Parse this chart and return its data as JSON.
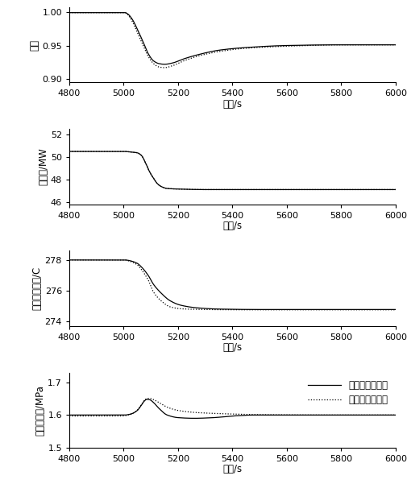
{
  "xlim": [
    4800,
    6000
  ],
  "xticks": [
    4800,
    5000,
    5200,
    5400,
    5600,
    5800,
    6000
  ],
  "xlabel": "时间/s",
  "plot1": {
    "ylabel": "效率",
    "ylim": [
      0.895,
      1.007
    ],
    "yticks": [
      0.9,
      0.95,
      1.0
    ],
    "solid_points": [
      [
        4800,
        0.999
      ],
      [
        4990,
        0.999
      ],
      [
        5005,
        0.999
      ],
      [
        5015,
        0.997
      ],
      [
        5030,
        0.99
      ],
      [
        5055,
        0.97
      ],
      [
        5075,
        0.952
      ],
      [
        5090,
        0.938
      ],
      [
        5110,
        0.927
      ],
      [
        5130,
        0.923
      ],
      [
        5150,
        0.922
      ],
      [
        5180,
        0.924
      ],
      [
        5220,
        0.93
      ],
      [
        5280,
        0.937
      ],
      [
        5350,
        0.943
      ],
      [
        5450,
        0.947
      ],
      [
        5600,
        0.95
      ],
      [
        5800,
        0.951
      ],
      [
        6000,
        0.951
      ]
    ],
    "dotted_points": [
      [
        4800,
        0.999
      ],
      [
        4990,
        0.999
      ],
      [
        5005,
        0.999
      ],
      [
        5015,
        0.996
      ],
      [
        5030,
        0.987
      ],
      [
        5055,
        0.965
      ],
      [
        5075,
        0.947
      ],
      [
        5090,
        0.934
      ],
      [
        5110,
        0.923
      ],
      [
        5130,
        0.918
      ],
      [
        5150,
        0.917
      ],
      [
        5180,
        0.92
      ],
      [
        5220,
        0.927
      ],
      [
        5280,
        0.935
      ],
      [
        5350,
        0.941
      ],
      [
        5450,
        0.946
      ],
      [
        5600,
        0.949
      ],
      [
        5800,
        0.951
      ],
      [
        6000,
        0.951
      ]
    ]
  },
  "plot2": {
    "ylabel": "核功率/MW",
    "ylim": [
      45.8,
      52.5
    ],
    "yticks": [
      46,
      48,
      50,
      52
    ],
    "solid_points": [
      [
        4800,
        50.5
      ],
      [
        4990,
        50.5
      ],
      [
        5005,
        50.5
      ],
      [
        5015,
        50.48
      ],
      [
        5030,
        50.45
      ],
      [
        5050,
        50.38
      ],
      [
        5065,
        50.15
      ],
      [
        5080,
        49.5
      ],
      [
        5095,
        48.7
      ],
      [
        5110,
        48.1
      ],
      [
        5125,
        47.6
      ],
      [
        5140,
        47.35
      ],
      [
        5160,
        47.2
      ],
      [
        5200,
        47.15
      ],
      [
        5300,
        47.1
      ],
      [
        5500,
        47.1
      ],
      [
        6000,
        47.1
      ]
    ],
    "dotted_points": [
      [
        4800,
        50.5
      ],
      [
        4990,
        50.5
      ],
      [
        5005,
        50.5
      ],
      [
        5015,
        50.48
      ],
      [
        5030,
        50.45
      ],
      [
        5050,
        50.38
      ],
      [
        5065,
        50.15
      ],
      [
        5080,
        49.5
      ],
      [
        5095,
        48.7
      ],
      [
        5110,
        48.1
      ],
      [
        5125,
        47.6
      ],
      [
        5140,
        47.35
      ],
      [
        5160,
        47.2
      ],
      [
        5200,
        47.15
      ],
      [
        5300,
        47.1
      ],
      [
        5500,
        47.1
      ],
      [
        6000,
        47.1
      ]
    ]
  },
  "plot3": {
    "ylabel": "堆芯出口温度/C",
    "ylim": [
      273.7,
      278.6
    ],
    "yticks": [
      274,
      276,
      278
    ],
    "solid_points": [
      [
        4800,
        278.0
      ],
      [
        4990,
        278.0
      ],
      [
        5005,
        278.0
      ],
      [
        5015,
        277.98
      ],
      [
        5030,
        277.92
      ],
      [
        5050,
        277.78
      ],
      [
        5065,
        277.55
      ],
      [
        5090,
        277.0
      ],
      [
        5110,
        276.4
      ],
      [
        5140,
        275.8
      ],
      [
        5170,
        275.35
      ],
      [
        5210,
        275.05
      ],
      [
        5270,
        274.88
      ],
      [
        5350,
        274.8
      ],
      [
        5500,
        274.77
      ],
      [
        5800,
        274.77
      ],
      [
        6000,
        274.77
      ]
    ],
    "dotted_points": [
      [
        4800,
        278.0
      ],
      [
        4990,
        278.0
      ],
      [
        5005,
        278.0
      ],
      [
        5015,
        277.96
      ],
      [
        5030,
        277.87
      ],
      [
        5050,
        277.68
      ],
      [
        5065,
        277.38
      ],
      [
        5090,
        276.7
      ],
      [
        5110,
        275.9
      ],
      [
        5140,
        275.3
      ],
      [
        5170,
        274.95
      ],
      [
        5210,
        274.82
      ],
      [
        5270,
        274.78
      ],
      [
        5350,
        274.76
      ],
      [
        5500,
        274.75
      ],
      [
        5800,
        274.75
      ],
      [
        6000,
        274.75
      ]
    ]
  },
  "plot4": {
    "ylabel": "主衇汽压力/MPa",
    "ylim": [
      1.5,
      1.73
    ],
    "yticks": [
      1.5,
      1.6,
      1.7
    ],
    "solid_points": [
      [
        4800,
        1.6
      ],
      [
        4990,
        1.6
      ],
      [
        5005,
        1.6
      ],
      [
        5015,
        1.601
      ],
      [
        5030,
        1.604
      ],
      [
        5050,
        1.614
      ],
      [
        5065,
        1.63
      ],
      [
        5075,
        1.642
      ],
      [
        5085,
        1.648
      ],
      [
        5095,
        1.647
      ],
      [
        5110,
        1.638
      ],
      [
        5130,
        1.62
      ],
      [
        5160,
        1.6
      ],
      [
        5200,
        1.592
      ],
      [
        5260,
        1.59
      ],
      [
        5330,
        1.592
      ],
      [
        5400,
        1.597
      ],
      [
        5480,
        1.6
      ],
      [
        5600,
        1.6
      ],
      [
        6000,
        1.6
      ]
    ],
    "dotted_points": [
      [
        4800,
        1.597
      ],
      [
        4990,
        1.597
      ],
      [
        5005,
        1.598
      ],
      [
        5015,
        1.6
      ],
      [
        5030,
        1.604
      ],
      [
        5050,
        1.615
      ],
      [
        5065,
        1.632
      ],
      [
        5075,
        1.644
      ],
      [
        5085,
        1.65
      ],
      [
        5095,
        1.651
      ],
      [
        5110,
        1.647
      ],
      [
        5130,
        1.638
      ],
      [
        5160,
        1.624
      ],
      [
        5200,
        1.614
      ],
      [
        5260,
        1.608
      ],
      [
        5330,
        1.605
      ],
      [
        5400,
        1.603
      ],
      [
        5500,
        1.601
      ],
      [
        5700,
        1.6
      ],
      [
        6000,
        1.6
      ]
    ],
    "legend_solid": "中间回路泵调速",
    "legend_dotted": "中间回路泵定速"
  },
  "line_color": "#000000",
  "linewidth": 0.9,
  "font_size": 9,
  "label_font_size": 8.5,
  "tick_font_size": 8
}
